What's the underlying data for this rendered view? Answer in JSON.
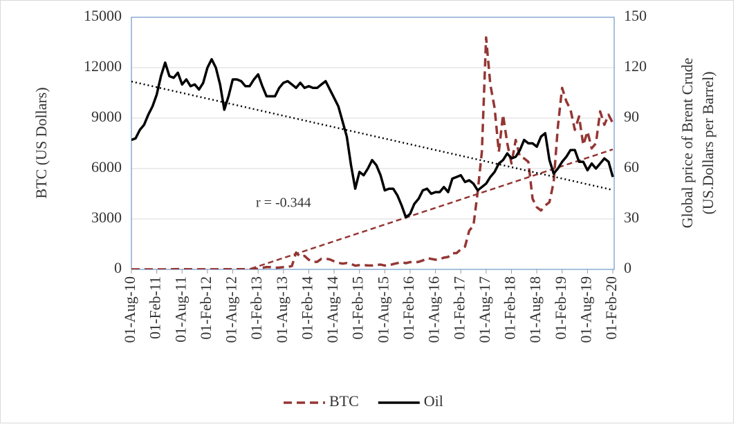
{
  "chart_data": {
    "type": "line",
    "annotation": "r = -0.344",
    "y_label": "BTC (US Dollars)",
    "y2_label": "Global price of Brent Crude (US.Dollars per Barrel)",
    "categories": [
      "01-Aug-10",
      null,
      null,
      null,
      null,
      null,
      "01-Feb-11",
      null,
      null,
      null,
      null,
      null,
      "01-Aug-11",
      null,
      null,
      null,
      null,
      null,
      "01-Feb-12",
      null,
      null,
      null,
      null,
      null,
      "01-Aug-12",
      null,
      null,
      null,
      null,
      null,
      "01-Feb-13",
      null,
      null,
      null,
      null,
      null,
      "01-Aug-13",
      null,
      null,
      null,
      null,
      null,
      "01-Feb-14",
      null,
      null,
      null,
      null,
      null,
      "01-Aug-14",
      null,
      null,
      null,
      null,
      null,
      "01-Feb-15",
      null,
      null,
      null,
      null,
      null,
      "01-Aug-15",
      null,
      null,
      null,
      null,
      null,
      "01-Feb-16",
      null,
      null,
      null,
      null,
      null,
      "01-Aug-16",
      null,
      null,
      null,
      null,
      null,
      "01-Feb-17",
      null,
      null,
      null,
      null,
      null,
      "01-Aug-17",
      null,
      null,
      null,
      null,
      null,
      "01-Feb-18",
      null,
      null,
      null,
      null,
      null,
      "01-Aug-18",
      null,
      null,
      null,
      null,
      null,
      "01-Feb-19",
      null,
      null,
      null,
      null,
      null,
      "01-Aug-19",
      null,
      null,
      null,
      null,
      null,
      "01-Feb-20"
    ],
    "series": [
      {
        "name": "BTC",
        "color": "#943634",
        "dash": true,
        "trendline": true,
        "axis": "y",
        "values": [
          0,
          0,
          0,
          0,
          0,
          0,
          1,
          1,
          1,
          4,
          9,
          17,
          14,
          8,
          5,
          3,
          3,
          5,
          6,
          5,
          5,
          5,
          7,
          9,
          11,
          12,
          11,
          12,
          13,
          20,
          33,
          93,
          139,
          129,
          97,
          106,
          135,
          141,
          200,
          1000,
          750,
          800,
          570,
          450,
          450,
          630,
          640,
          590,
          480,
          390,
          340,
          380,
          320,
          220,
          250,
          250,
          235,
          230,
          265,
          285,
          230,
          235,
          315,
          375,
          430,
          370,
          435,
          415,
          450,
          530,
          670,
          625,
          575,
          610,
          700,
          740,
          960,
          970,
          1190,
          1350,
          2300,
          2600,
          4600,
          7000,
          13800,
          11000,
          9600,
          7000,
          9200,
          7500,
          6300,
          7700,
          6700,
          6600,
          6400,
          4200,
          3700,
          3500,
          3800,
          4000,
          5200,
          8500,
          10800,
          10000,
          9500,
          8300,
          9100,
          7400,
          8200,
          7200,
          7500,
          9400,
          8600,
          9200,
          8700
        ]
      },
      {
        "name": "Oil",
        "color": "#000000",
        "dash": false,
        "trendline": true,
        "axis": "y2",
        "values": [
          77,
          78,
          83,
          86,
          92,
          97,
          104,
          115,
          123,
          115,
          114,
          117,
          110,
          113,
          109,
          110,
          107,
          111,
          120,
          125,
          120,
          110,
          95,
          103,
          113,
          113,
          112,
          109,
          109,
          113,
          116,
          109,
          103,
          103,
          103,
          108,
          111,
          112,
          110,
          108,
          111,
          108,
          109,
          108,
          108,
          110,
          112,
          107,
          102,
          97,
          88,
          79,
          62,
          48,
          58,
          56,
          60,
          65,
          62,
          56,
          47,
          48,
          48,
          44,
          38,
          31,
          33,
          39,
          42,
          47,
          48,
          45,
          46,
          46,
          49,
          46,
          54,
          55,
          56,
          52,
          53,
          51,
          47,
          49,
          51,
          55,
          58,
          63,
          65,
          69,
          66,
          67,
          71,
          77,
          75,
          75,
          73,
          79,
          81,
          65,
          57,
          60,
          64,
          67,
          71,
          71,
          64,
          64,
          59,
          63,
          60,
          63,
          66,
          64,
          55
        ]
      }
    ],
    "ylim": [
      0,
      15000
    ],
    "yticks": [
      0,
      3000,
      6000,
      9000,
      12000,
      15000
    ],
    "y2lim": [
      0,
      150
    ],
    "y2ticks": [
      0,
      30,
      60,
      90,
      120,
      150
    ],
    "grid": true,
    "legend": "bottom"
  }
}
